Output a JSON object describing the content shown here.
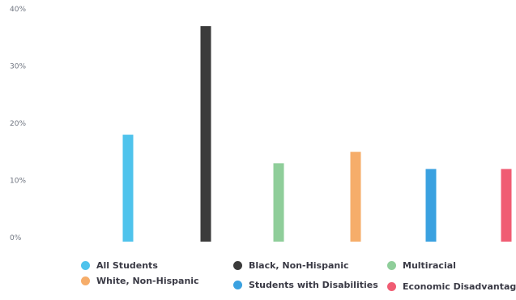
{
  "chart_data": {
    "type": "bar",
    "title": "",
    "xlabel": "",
    "ylabel": "",
    "ylim": [
      0,
      40
    ],
    "y_ticks": [
      "0%",
      "10%",
      "20%",
      "30%",
      "40%"
    ],
    "grid": false,
    "legend_position": "bottom",
    "series": [
      {
        "name": "All Students",
        "value": 18,
        "color": "#4fc3ec"
      },
      {
        "name": "Black, Non-Hispanic",
        "value": 37,
        "color": "#3b3b3b"
      },
      {
        "name": "Multiracial",
        "value": 13,
        "color": "#8fce9a"
      },
      {
        "name": "White, Non-Hispanic",
        "value": 15,
        "color": "#f6ad6a"
      },
      {
        "name": "Students with Disabilities",
        "value": 12,
        "color": "#3aa1e0"
      },
      {
        "name": "Economic Disadvantage",
        "value": 12,
        "color": "#f05c73"
      }
    ]
  },
  "legend": {
    "items": [
      {
        "label": "All Students",
        "color": "#4fc3ec"
      },
      {
        "label": "Black, Non-Hispanic",
        "color": "#3b3b3b"
      },
      {
        "label": "Multiracial",
        "color": "#8fce9a"
      },
      {
        "label": "White, Non-Hispanic",
        "color": "#f6ad6a"
      },
      {
        "label": "Students with Disabilities",
        "color": "#3aa1e0"
      },
      {
        "label": "Economic Disadvantage",
        "color": "#f05c73"
      }
    ]
  }
}
